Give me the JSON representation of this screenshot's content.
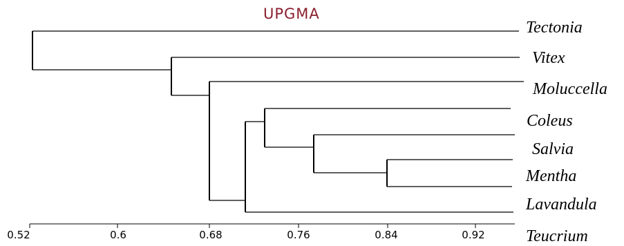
{
  "title": "UPGMA",
  "colors": {
    "title": "#8a1f2d",
    "lines": "#000000",
    "moluccella_branch": "#9a9a9a"
  },
  "chart_data": {
    "type": "dendrogram",
    "method": "UPGMA",
    "title": "UPGMA",
    "axis": {
      "ticks": [
        "0.52",
        "0.6",
        "0.68",
        "0.76",
        "0.84",
        "0.92"
      ],
      "range": [
        0.52,
        0.955
      ]
    },
    "leaves": [
      "Tectonia",
      "Vitex",
      "Moluccella",
      "Coleus",
      "Salvia",
      "Mentha",
      "Lavandula",
      "Teucrium"
    ],
    "merges": [
      {
        "name": "salvia-mentha",
        "children": [
          "Salvia",
          "Mentha"
        ],
        "height": 0.83
      },
      {
        "name": "salvia-mentha-group",
        "children": [
          "Salvia"
        ],
        "height": 0.77
      },
      {
        "name": "coleus-group",
        "children": [
          "Coleus",
          "salvia-mentha-group"
        ],
        "height": 0.725
      },
      {
        "name": "lavandula-group",
        "children": [
          "coleus-group",
          "Lavandula"
        ],
        "height": 0.705
      },
      {
        "name": "moluccella-group",
        "children": [
          "Moluccella",
          "lavandula-group"
        ],
        "height": 0.68
      },
      {
        "name": "vitex-group",
        "children": [
          "Vitex",
          "moluccella-group"
        ],
        "height": 0.643
      },
      {
        "name": "root",
        "children": [
          "Tectonia",
          "vitex-group"
        ],
        "height": 0.52
      }
    ]
  }
}
